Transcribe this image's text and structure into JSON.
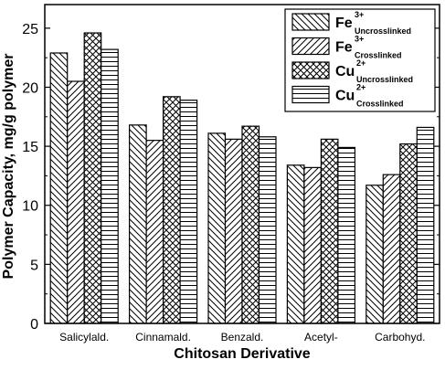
{
  "chart_data": {
    "type": "bar",
    "title": "",
    "xlabel": "Chitosan Derivative",
    "ylabel": "Polymer Capacity, mg/g polymer",
    "ylim": [
      0,
      27
    ],
    "yticks": [
      0,
      5,
      10,
      15,
      20,
      25
    ],
    "categories": [
      "Salicylald.",
      "Cinnamald.",
      "Benzald.",
      "Acetyl-",
      "Carbohyd."
    ],
    "series": [
      {
        "name": "Fe3+ Uncrosslinked",
        "ion": "Fe",
        "charge": "3+",
        "state": "Uncrosslinked",
        "pattern": "backslash-hatch",
        "values": [
          22.9,
          16.8,
          16.1,
          13.4,
          11.7
        ]
      },
      {
        "name": "Fe3+ Crosslinked",
        "ion": "Fe",
        "charge": "3+",
        "state": "Crosslinked",
        "pattern": "slash-hatch",
        "values": [
          20.5,
          15.5,
          15.6,
          13.2,
          12.6
        ]
      },
      {
        "name": "Cu2+ Uncrosslinked",
        "ion": "Cu",
        "charge": "2+",
        "state": "Uncrosslinked",
        "pattern": "cross-hatch",
        "values": [
          24.6,
          19.2,
          16.7,
          15.6,
          15.2
        ]
      },
      {
        "name": "Cu2+ Crosslinked",
        "ion": "Cu",
        "charge": "2+",
        "state": "Crosslinked",
        "pattern": "horizontal-hatch",
        "values": [
          23.2,
          18.9,
          15.8,
          14.9,
          16.6
        ]
      }
    ],
    "grid": false,
    "legend_position": "top-right",
    "colors": {
      "stroke": "#000000",
      "background": "#ffffff"
    }
  }
}
